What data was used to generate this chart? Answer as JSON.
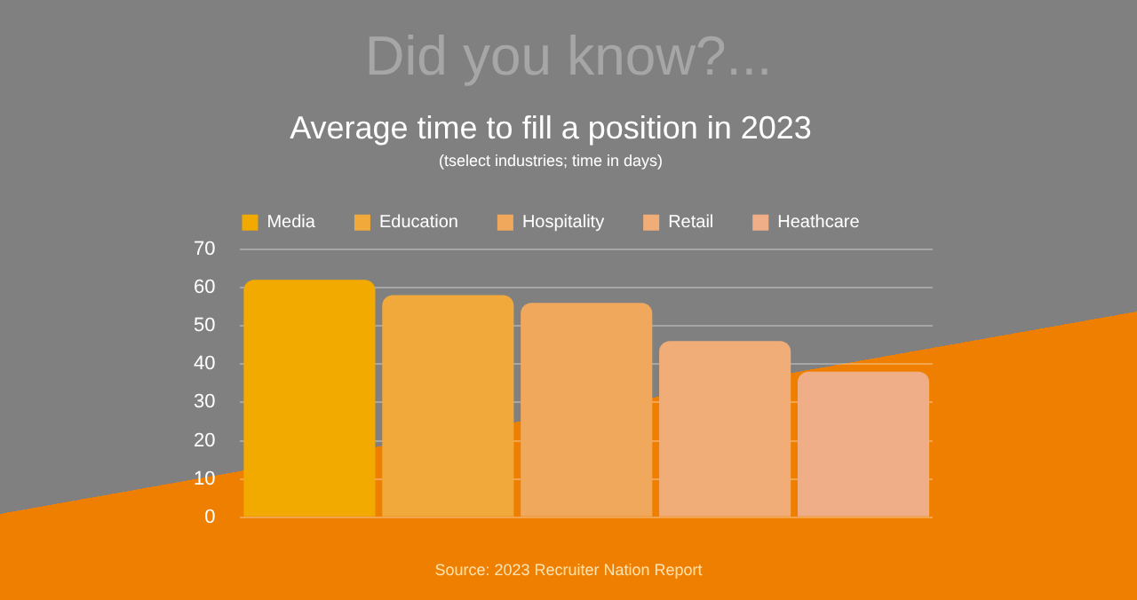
{
  "chart_data": {
    "type": "bar",
    "title": "Average time to fill a position in 2023",
    "subtitle": "(tselect industries; time in days)",
    "annotations": [
      "Did you know?...",
      "Source: 2023 Recruiter Nation Report"
    ],
    "categories": [
      null,
      null,
      null,
      null,
      null
    ],
    "series": [
      {
        "name": "Media",
        "color": "#f2a900",
        "values": [
          62,
          null,
          null,
          null,
          null
        ]
      },
      {
        "name": "Education",
        "color": "#f0a93a",
        "values": [
          null,
          58,
          null,
          null,
          null
        ]
      },
      {
        "name": "Hospitality",
        "color": "#f0a85c",
        "values": [
          null,
          null,
          56,
          null,
          null
        ]
      },
      {
        "name": "Retail",
        "color": "#f0ad78",
        "values": [
          null,
          null,
          null,
          46,
          null
        ]
      },
      {
        "name": "Heathcare",
        "color": "#efae88",
        "values": [
          null,
          null,
          null,
          null,
          38
        ]
      }
    ],
    "ylim": [
      0,
      70
    ],
    "yticks": [
      0,
      10,
      20,
      30,
      40,
      50,
      60,
      70
    ],
    "grid": "y",
    "legend": "top",
    "tick_labels": "y"
  }
}
